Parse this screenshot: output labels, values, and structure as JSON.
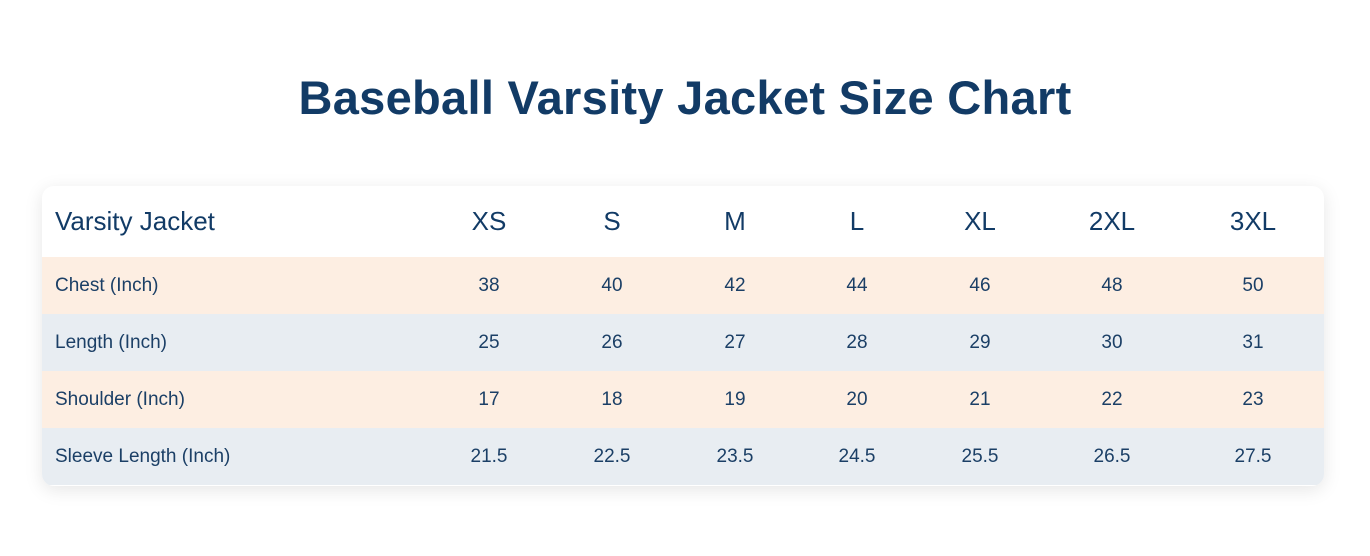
{
  "title": "Baseball Varsity Jacket Size Chart",
  "table": {
    "header": [
      "Varsity Jacket",
      "XS",
      "S",
      "M",
      "L",
      "XL",
      "2XL",
      "3XL"
    ],
    "rows": [
      [
        "Chest (Inch)",
        38,
        40,
        42,
        44,
        46,
        48,
        50
      ],
      [
        "Length (Inch)",
        25,
        26,
        27,
        28,
        29,
        30,
        31
      ],
      [
        "Shoulder (Inch)",
        17,
        18,
        19,
        20,
        21,
        22,
        23
      ],
      [
        "Sleeve Length (Inch)",
        21.5,
        22.5,
        23.5,
        24.5,
        25.5,
        26.5,
        27.5
      ]
    ]
  }
}
